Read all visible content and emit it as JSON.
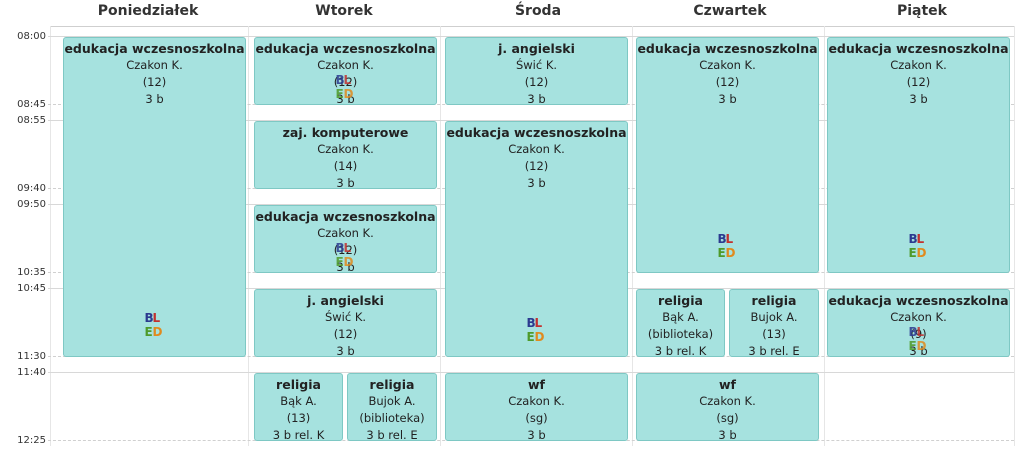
{
  "days": [
    "Poniedziałek",
    "Wtorek",
    "Środa",
    "Czwartek",
    "Piątek"
  ],
  "times": [
    "08:00",
    "08:45",
    "08:55",
    "09:40",
    "09:50",
    "10:35",
    "10:45",
    "11:30",
    "11:40",
    "12:25"
  ],
  "logo": {
    "b": "B",
    "l": "L",
    "e": "E",
    "d": "D"
  },
  "events": {
    "mon_1": {
      "subject": "edukacja wczesnoszkolna",
      "teacher": "Czakon K.",
      "room": "(12)",
      "class": "3 b"
    },
    "tue_1": {
      "subject": "edukacja wczesnoszkolna",
      "teacher": "Czakon K.",
      "room": "(12)",
      "class": "3 b"
    },
    "tue_2": {
      "subject": "zaj. komputerowe",
      "teacher": "Czakon K.",
      "room": "(14)",
      "class": "3 b"
    },
    "tue_3": {
      "subject": "edukacja wczesnoszkolna",
      "teacher": "Czakon K.",
      "room": "(12)",
      "class": "3 b"
    },
    "tue_4": {
      "subject": "j. angielski",
      "teacher": "Świć K.",
      "room": "(12)",
      "class": "3 b"
    },
    "tue_5a": {
      "subject": "religia",
      "teacher": "Bąk A.",
      "room": "(13)",
      "class": "3 b rel. K"
    },
    "tue_5b": {
      "subject": "religia",
      "teacher": "Bujok A.",
      "room": "(biblioteka)",
      "class": "3 b rel. E"
    },
    "wed_1": {
      "subject": "j. angielski",
      "teacher": "Świć K.",
      "room": "(12)",
      "class": "3 b"
    },
    "wed_2": {
      "subject": "edukacja wczesnoszkolna",
      "teacher": "Czakon K.",
      "room": "(12)",
      "class": "3 b"
    },
    "wed_3": {
      "subject": "wf",
      "teacher": "Czakon K.",
      "room": "(sg)",
      "class": "3 b"
    },
    "thu_1": {
      "subject": "edukacja wczesnoszkolna",
      "teacher": "Czakon K.",
      "room": "(12)",
      "class": "3 b"
    },
    "thu_2a": {
      "subject": "religia",
      "teacher": "Bąk A.",
      "room": "(biblioteka)",
      "class": "3 b rel. K"
    },
    "thu_2b": {
      "subject": "religia",
      "teacher": "Bujok A.",
      "room": "(13)",
      "class": "3 b rel. E"
    },
    "thu_3": {
      "subject": "wf",
      "teacher": "Czakon K.",
      "room": "(sg)",
      "class": "3 b"
    },
    "fri_1": {
      "subject": "edukacja wczesnoszkolna",
      "teacher": "Czakon K.",
      "room": "(12)",
      "class": "3 b"
    },
    "fri_2": {
      "subject": "edukacja wczesnoszkolna",
      "teacher": "Czakon K.",
      "room": "(9)",
      "class": "3 b"
    }
  },
  "colors": {
    "event_bg": "#a6e2df",
    "event_border": "#7ec8c4"
  }
}
